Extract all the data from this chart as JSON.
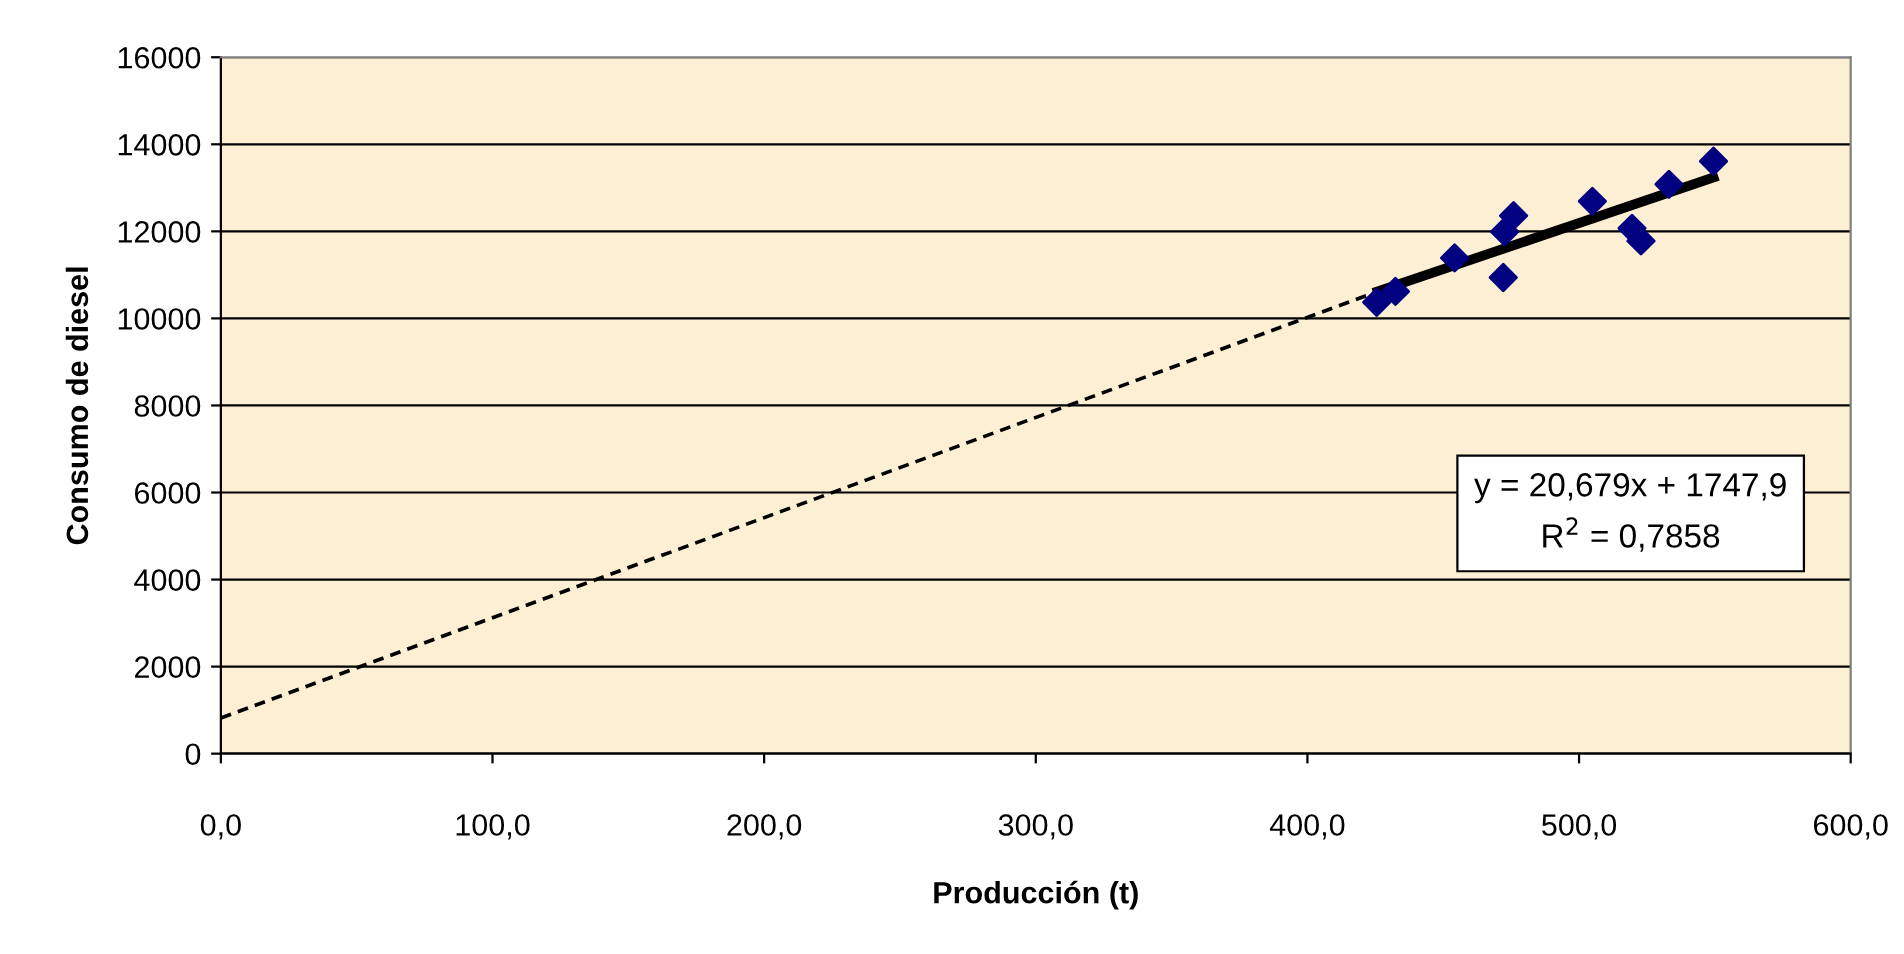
{
  "chart_data": {
    "type": "scatter",
    "xlabel": "Producción (t)",
    "ylabel": "Consumo de diesel",
    "xlim": [
      0,
      600
    ],
    "ylim": [
      0,
      16000
    ],
    "xticks": [
      {
        "value": 0,
        "label": "0,0"
      },
      {
        "value": 100,
        "label": "100,0"
      },
      {
        "value": 200,
        "label": "200,0"
      },
      {
        "value": 300,
        "label": "300,0"
      },
      {
        "value": 400,
        "label": "400,0"
      },
      {
        "value": 500,
        "label": "500,0"
      },
      {
        "value": 600,
        "label": "600,0"
      }
    ],
    "yticks": [
      0,
      2000,
      4000,
      6000,
      8000,
      10000,
      12000,
      14000,
      16000
    ],
    "grid": "y",
    "legend": false,
    "series": [
      {
        "marker": "diamond",
        "color": "#000080",
        "x": [
          425.5,
          432.4,
          454.2,
          472.1,
          472.6,
          475.9,
          504.9,
          519.5,
          522.8,
          533.1,
          549.5
        ],
        "values": [
          10370,
          10620,
          11390,
          10940,
          11990,
          12360,
          12690,
          12070,
          11780,
          13080,
          13610
        ]
      },
      {
        "type": "line",
        "color": "#000000",
        "line_style": "dashed",
        "x": [
          0,
          425.9
        ],
        "values": [
          820,
          10620
        ]
      },
      {
        "type": "line",
        "color": "#000000",
        "line_style": "solid",
        "x": [
          425.9,
          549.5
        ],
        "values": [
          10620,
          13240
        ]
      }
    ],
    "annotations": [
      "y = 20,679x + 1747,9",
      "R$^{2}$ = 0,7858"
    ]
  }
}
